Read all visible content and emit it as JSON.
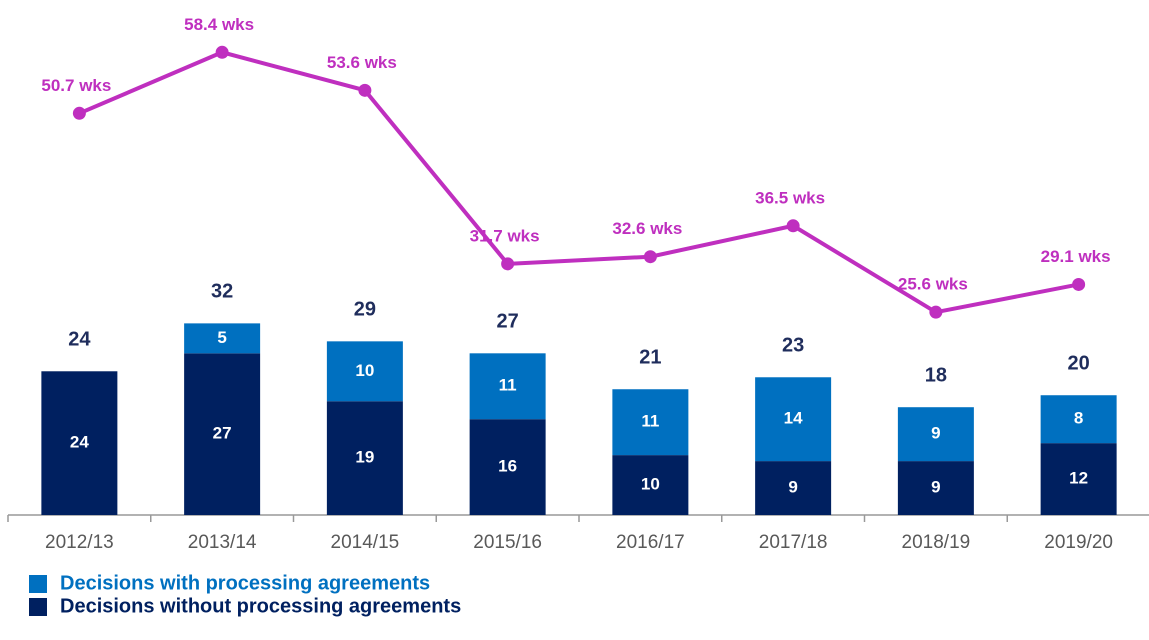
{
  "chart_data": {
    "type": "bar-line",
    "categories": [
      "2012/13",
      "2013/14",
      "2014/15",
      "2015/16",
      "2016/17",
      "2017/18",
      "2018/19",
      "2019/20"
    ],
    "series": [
      {
        "name": "Decisions without processing agreements",
        "type": "bar",
        "color": "#002060",
        "values": [
          24,
          27,
          19,
          16,
          10,
          9,
          9,
          12
        ]
      },
      {
        "name": "Decisions with processing agreements",
        "type": "bar",
        "color": "#0070c0",
        "values": [
          null,
          5,
          10,
          11,
          11,
          14,
          9,
          8
        ]
      },
      {
        "type": "line",
        "axis": "y2",
        "color": "#bf2fbf",
        "values": [
          50.7,
          58.4,
          53.6,
          31.7,
          32.6,
          36.5,
          25.6,
          29.1
        ],
        "value_labels": [
          "50.7 wks",
          "58.4 wks",
          "53.6 wks",
          "31.7 wks",
          "32.6 wks",
          "36.5 wks",
          "25.6 wks",
          "29.1 wks"
        ]
      }
    ],
    "total_labels": [
      24,
      32,
      29,
      27,
      21,
      23,
      18,
      20
    ],
    "ylim": [
      0,
      86
    ],
    "y2lim": [
      0,
      65
    ],
    "legend": "bottom-left"
  }
}
